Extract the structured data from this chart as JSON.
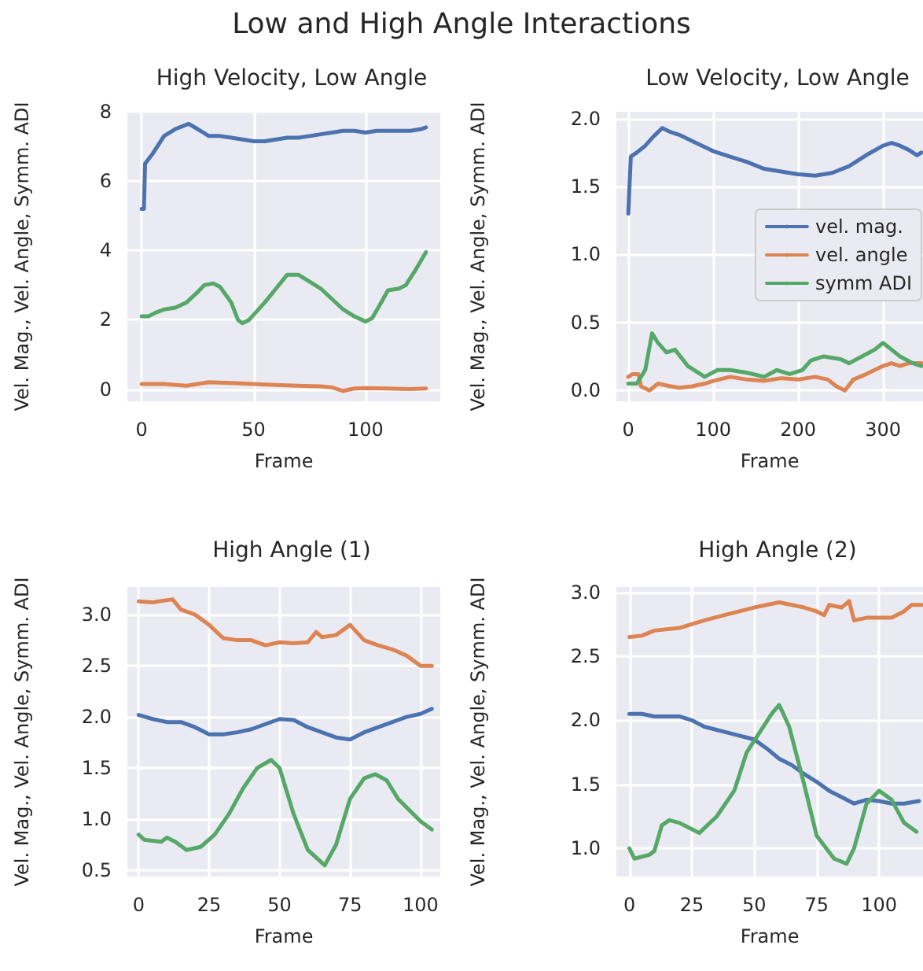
{
  "chart_data": [
    {
      "type": "line",
      "title": "High Velocity, Low Angle",
      "annotations": [
        "Low and High Angle Interactions"
      ],
      "xlabel": "Frame",
      "ylabel": "Vel. Mag., Vel. Angle, Symm. ADI",
      "grid": true,
      "legend": false,
      "xlim": [
        -6.4,
        133.4
      ],
      "ylim": [
        -0.35,
        8.0
      ],
      "xticks": [
        0,
        50,
        100
      ],
      "yticks": [
        0,
        2,
        4,
        6,
        8
      ],
      "series": [
        {
          "color": "#4c72b0",
          "x": [
            0,
            1,
            1.5,
            5,
            10,
            15,
            21,
            25,
            30,
            35,
            40,
            45,
            50,
            55,
            60,
            65,
            70,
            75,
            80,
            85,
            90,
            95,
            100,
            105,
            110,
            115,
            120,
            125,
            127
          ],
          "values": [
            5.2,
            5.2,
            6.5,
            6.8,
            7.3,
            7.5,
            7.65,
            7.5,
            7.3,
            7.3,
            7.25,
            7.2,
            7.15,
            7.15,
            7.2,
            7.25,
            7.25,
            7.3,
            7.35,
            7.4,
            7.45,
            7.45,
            7.4,
            7.45,
            7.45,
            7.45,
            7.45,
            7.5,
            7.55
          ]
        },
        {
          "color": "#dd8452",
          "x": [
            0,
            10,
            20,
            30,
            40,
            50,
            60,
            70,
            80,
            85,
            90,
            95,
            100,
            110,
            120,
            127
          ],
          "values": [
            0.15,
            0.15,
            0.1,
            0.2,
            0.18,
            0.15,
            0.12,
            0.1,
            0.08,
            0.05,
            -0.05,
            0.02,
            0.03,
            0.02,
            0,
            0.02
          ]
        },
        {
          "color": "#55a868",
          "x": [
            0,
            3,
            6,
            10,
            15,
            20,
            25,
            28,
            32,
            35,
            40,
            43,
            45,
            48,
            55,
            60,
            65,
            70,
            75,
            80,
            85,
            90,
            95,
            100,
            103,
            107,
            110,
            115,
            118,
            122,
            127
          ],
          "values": [
            2.1,
            2.1,
            2.2,
            2.3,
            2.35,
            2.5,
            2.8,
            3.0,
            3.05,
            2.95,
            2.5,
            2.0,
            1.9,
            2.0,
            2.5,
            2.9,
            3.3,
            3.3,
            3.1,
            2.9,
            2.6,
            2.3,
            2.1,
            1.95,
            2.05,
            2.5,
            2.85,
            2.9,
            3.0,
            3.4,
            3.95
          ]
        }
      ]
    },
    {
      "type": "line",
      "title": "Low Velocity, Low Angle",
      "xlabel": "Frame",
      "ylabel": "Vel. Mag., Vel. Angle, Symm. ADI",
      "grid": true,
      "legend": "center right",
      "xlim": [
        -14,
        347
      ],
      "ylim": [
        -0.08,
        2.05
      ],
      "xticks": [
        0,
        100,
        200,
        300
      ],
      "yticks": [
        {
          "value": 0,
          "label": "0.0"
        },
        {
          "value": 0.5,
          "label": "0.5"
        },
        {
          "value": 1,
          "label": "1.0"
        },
        {
          "value": 1.5,
          "label": "1.5"
        },
        {
          "value": 2,
          "label": "2.0"
        }
      ],
      "series": [
        {
          "name": "vel. mag.",
          "color": "#4c72b0",
          "x": [
            0,
            3,
            10,
            20,
            30,
            40,
            50,
            60,
            70,
            80,
            100,
            120,
            140,
            160,
            180,
            200,
            220,
            240,
            260,
            280,
            300,
            310,
            320,
            330,
            340,
            345
          ],
          "values": [
            1.3,
            1.72,
            1.75,
            1.8,
            1.87,
            1.93,
            1.9,
            1.88,
            1.85,
            1.82,
            1.76,
            1.72,
            1.68,
            1.63,
            1.61,
            1.59,
            1.58,
            1.6,
            1.65,
            1.73,
            1.8,
            1.82,
            1.8,
            1.77,
            1.73,
            1.75
          ]
        },
        {
          "name": "vel. angle",
          "color": "#dd8452",
          "x": [
            0,
            5,
            12,
            15,
            25,
            35,
            50,
            60,
            75,
            90,
            100,
            120,
            140,
            160,
            180,
            200,
            220,
            235,
            245,
            255,
            265,
            280,
            290,
            300,
            310,
            320,
            330,
            345
          ],
          "values": [
            0.1,
            0.12,
            0.12,
            0.03,
            0,
            0.05,
            0.03,
            0.02,
            0.03,
            0.05,
            0.07,
            0.1,
            0.08,
            0.07,
            0.09,
            0.08,
            0.1,
            0.08,
            0.03,
            0,
            0.08,
            0.12,
            0.15,
            0.18,
            0.2,
            0.18,
            0.2,
            0.2
          ]
        },
        {
          "name": "symm ADI",
          "color": "#55a868",
          "x": [
            0,
            10,
            20,
            28,
            35,
            45,
            55,
            70,
            90,
            105,
            120,
            140,
            160,
            175,
            190,
            205,
            215,
            230,
            250,
            260,
            275,
            290,
            300,
            310,
            320,
            335,
            345
          ],
          "values": [
            0.05,
            0.05,
            0.15,
            0.42,
            0.35,
            0.28,
            0.3,
            0.18,
            0.1,
            0.15,
            0.15,
            0.13,
            0.1,
            0.15,
            0.12,
            0.15,
            0.22,
            0.25,
            0.23,
            0.2,
            0.25,
            0.3,
            0.35,
            0.3,
            0.25,
            0.2,
            0.18
          ]
        }
      ]
    },
    {
      "type": "line",
      "title": "High Angle (1)",
      "xlabel": "Frame",
      "ylabel": "Vel. Mag., Vel. Angle, Symm. ADI",
      "grid": true,
      "legend": false,
      "xlim": [
        -4,
        107
      ],
      "ylim": [
        0.44,
        3.27
      ],
      "xticks": [
        0,
        25,
        50,
        75,
        100
      ],
      "yticks": [
        {
          "value": 0.5,
          "label": "0.5"
        },
        {
          "value": 1,
          "label": "1.0"
        },
        {
          "value": 1.5,
          "label": "1.5"
        },
        {
          "value": 2,
          "label": "2.0"
        },
        {
          "value": 2.5,
          "label": "2.5"
        },
        {
          "value": 3,
          "label": "3.0"
        }
      ],
      "series": [
        {
          "color": "#4c72b0",
          "x": [
            0,
            5,
            10,
            15,
            20,
            25,
            30,
            35,
            40,
            45,
            50,
            55,
            60,
            65,
            70,
            75,
            80,
            85,
            90,
            95,
            100,
            104
          ],
          "values": [
            2.02,
            1.98,
            1.95,
            1.95,
            1.9,
            1.83,
            1.83,
            1.85,
            1.88,
            1.93,
            1.98,
            1.97,
            1.9,
            1.85,
            1.8,
            1.78,
            1.85,
            1.9,
            1.95,
            2.0,
            2.03,
            2.08
          ]
        },
        {
          "color": "#dd8452",
          "x": [
            0,
            5,
            12,
            15,
            20,
            25,
            30,
            35,
            40,
            45,
            50,
            55,
            60,
            63,
            65,
            70,
            75,
            80,
            85,
            90,
            95,
            100,
            104
          ],
          "values": [
            3.13,
            3.12,
            3.15,
            3.05,
            3.0,
            2.9,
            2.77,
            2.75,
            2.75,
            2.7,
            2.73,
            2.72,
            2.73,
            2.83,
            2.78,
            2.8,
            2.9,
            2.75,
            2.7,
            2.66,
            2.6,
            2.5,
            2.5
          ]
        },
        {
          "color": "#55a868",
          "x": [
            0,
            2,
            8,
            10,
            13,
            17,
            22,
            27,
            32,
            37,
            42,
            47,
            50,
            55,
            60,
            66,
            70,
            75,
            80,
            84,
            88,
            92,
            100,
            104
          ],
          "values": [
            0.85,
            0.8,
            0.78,
            0.82,
            0.78,
            0.7,
            0.73,
            0.85,
            1.05,
            1.3,
            1.5,
            1.58,
            1.5,
            1.05,
            0.7,
            0.55,
            0.75,
            1.2,
            1.4,
            1.44,
            1.38,
            1.2,
            0.98,
            0.9
          ]
        }
      ]
    },
    {
      "type": "line",
      "title": "High Angle (2)",
      "xlabel": "Frame",
      "ylabel": "Vel. Mag., Vel. Angle, Symm. ADI",
      "grid": true,
      "legend": false,
      "xlim": [
        -5.2,
        117.6
      ],
      "ylim": [
        0.78,
        3.04
      ],
      "xticks": [
        0,
        25,
        50,
        75,
        100
      ],
      "yticks": [
        {
          "value": 1,
          "label": "1.0"
        },
        {
          "value": 1.5,
          "label": "1.5"
        },
        {
          "value": 2,
          "label": "2.0"
        },
        {
          "value": 2.5,
          "label": "2.5"
        },
        {
          "value": 3,
          "label": "3.0"
        }
      ],
      "series": [
        {
          "color": "#4c72b0",
          "x": [
            0,
            5,
            10,
            20,
            25,
            30,
            40,
            50,
            55,
            60,
            65,
            70,
            75,
            80,
            85,
            90,
            95,
            100,
            105,
            110,
            116
          ],
          "values": [
            2.05,
            2.05,
            2.03,
            2.03,
            2.0,
            1.95,
            1.9,
            1.85,
            1.78,
            1.7,
            1.65,
            1.58,
            1.52,
            1.45,
            1.4,
            1.35,
            1.38,
            1.37,
            1.35,
            1.35,
            1.37
          ]
        },
        {
          "color": "#dd8452",
          "x": [
            0,
            5,
            10,
            20,
            30,
            40,
            50,
            55,
            60,
            65,
            70,
            75,
            78,
            80,
            85,
            88,
            90,
            95,
            100,
            105,
            110,
            113,
            117
          ],
          "values": [
            2.65,
            2.66,
            2.7,
            2.72,
            2.78,
            2.83,
            2.88,
            2.9,
            2.92,
            2.9,
            2.88,
            2.85,
            2.82,
            2.9,
            2.88,
            2.93,
            2.78,
            2.8,
            2.8,
            2.8,
            2.85,
            2.9,
            2.9
          ]
        },
        {
          "color": "#55a868",
          "x": [
            0,
            2,
            8,
            10,
            13,
            16,
            20,
            25,
            28,
            35,
            42,
            47,
            52,
            57,
            60,
            64,
            70,
            75,
            82,
            87,
            90,
            95,
            100,
            105,
            110,
            115
          ],
          "values": [
            1.0,
            0.92,
            0.95,
            0.98,
            1.18,
            1.22,
            1.2,
            1.15,
            1.12,
            1.25,
            1.45,
            1.75,
            1.9,
            2.05,
            2.12,
            1.95,
            1.5,
            1.1,
            0.92,
            0.88,
            1.0,
            1.35,
            1.45,
            1.38,
            1.2,
            1.13
          ]
        }
      ]
    }
  ]
}
